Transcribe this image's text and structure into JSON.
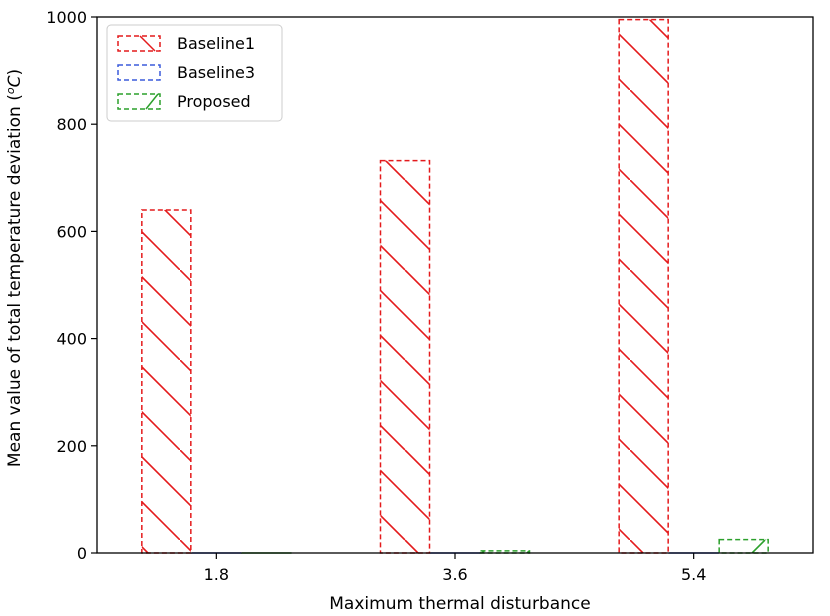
{
  "chart_data": {
    "type": "bar",
    "title": "",
    "xlabel": "Maximum thermal disturbance",
    "ylabel_main": "Mean value of total temperature deviation (",
    "ylabel_unit": "o",
    "ylabel_unit_tail": "C",
    "ylabel_close": ")",
    "categories": [
      "1.8",
      "3.6",
      "5.4"
    ],
    "ylim": [
      0,
      1000
    ],
    "yticks": [
      "0",
      "200",
      "400",
      "600",
      "800",
      "1000"
    ],
    "grid": false,
    "legend_position": "top-left",
    "series": [
      {
        "name": "Baseline1",
        "color": "#e41a1c",
        "hatch": "backslash",
        "values": [
          640,
          732,
          995
        ]
      },
      {
        "name": "Baseline3",
        "color": "#3b5bdb",
        "hatch": "none",
        "values": [
          0,
          0,
          0
        ]
      },
      {
        "name": "Proposed",
        "color": "#2ca02c",
        "hatch": "slash",
        "values": [
          0,
          4,
          25
        ]
      }
    ]
  }
}
